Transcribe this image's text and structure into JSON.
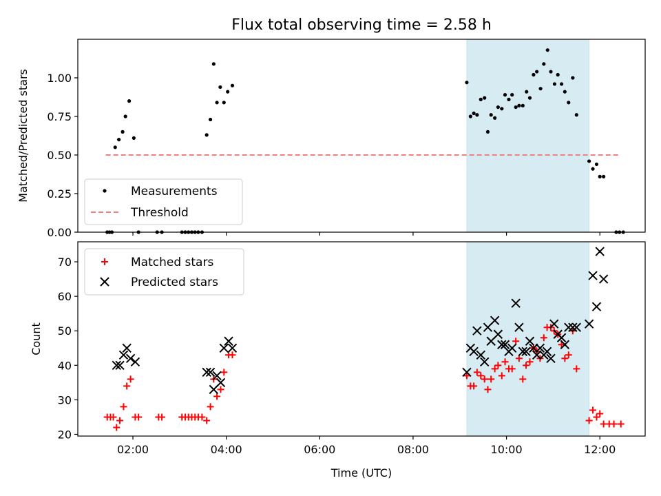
{
  "title": "Flux total observing time = 2.58 h",
  "chart_data": [
    {
      "type": "scatter",
      "ylabel": "Matched/Predicted stars",
      "xlim": [
        0.82,
        12.97
      ],
      "ylim": [
        0,
        1.25
      ],
      "yticks": [
        0.0,
        0.25,
        0.5,
        0.75,
        1.0
      ],
      "ytick_labels": [
        "0.00",
        "0.25",
        "0.50",
        "0.75",
        "1.00"
      ],
      "xtick_labels": [
        "02:00",
        "04:00",
        "06:00",
        "08:00",
        "10:00",
        "12:00"
      ],
      "xticks": [
        2,
        4,
        6,
        8,
        10,
        12
      ],
      "highlight_span": {
        "x": [
          9.15,
          11.77
        ],
        "color": "#add8e6"
      },
      "legend": {
        "placement": "lower-left",
        "entries": [
          "Measurements",
          "Threshold"
        ]
      },
      "series": [
        {
          "name": "Measurements",
          "marker": "dot",
          "color": "#000000",
          "points": [
            [
              1.45,
              0
            ],
            [
              1.5,
              0
            ],
            [
              1.55,
              0
            ],
            [
              1.62,
              0.55
            ],
            [
              1.7,
              0.6
            ],
            [
              1.78,
              0.65
            ],
            [
              1.84,
              0.75
            ],
            [
              1.92,
              0.85
            ],
            [
              2.02,
              0.61
            ],
            [
              2.12,
              0
            ],
            [
              2.52,
              0
            ],
            [
              2.62,
              0
            ],
            [
              3.05,
              0
            ],
            [
              3.12,
              0
            ],
            [
              3.19,
              0
            ],
            [
              3.26,
              0
            ],
            [
              3.33,
              0
            ],
            [
              3.4,
              0
            ],
            [
              3.48,
              0
            ],
            [
              3.58,
              0.63
            ],
            [
              3.66,
              0.73
            ],
            [
              3.73,
              1.09
            ],
            [
              3.8,
              0.84
            ],
            [
              3.87,
              0.94
            ],
            [
              3.95,
              0.84
            ],
            [
              4.03,
              0.91
            ],
            [
              4.13,
              0.95
            ],
            [
              9.15,
              0.97
            ],
            [
              9.23,
              0.75
            ],
            [
              9.3,
              0.77
            ],
            [
              9.37,
              0.76
            ],
            [
              9.45,
              0.86
            ],
            [
              9.53,
              0.87
            ],
            [
              9.6,
              0.65
            ],
            [
              9.67,
              0.76
            ],
            [
              9.75,
              0.74
            ],
            [
              9.82,
              0.81
            ],
            [
              9.9,
              0.8
            ],
            [
              9.97,
              0.89
            ],
            [
              10.05,
              0.86
            ],
            [
              10.12,
              0.89
            ],
            [
              10.2,
              0.81
            ],
            [
              10.27,
              0.82
            ],
            [
              10.35,
              0.82
            ],
            [
              10.43,
              0.91
            ],
            [
              10.5,
              0.87
            ],
            [
              10.58,
              1.02
            ],
            [
              10.65,
              1.04
            ],
            [
              10.73,
              0.93
            ],
            [
              10.8,
              1.09
            ],
            [
              10.88,
              1.18
            ],
            [
              10.95,
              1.04
            ],
            [
              11.03,
              0.96
            ],
            [
              11.1,
              1.02
            ],
            [
              11.18,
              0.96
            ],
            [
              11.25,
              0.91
            ],
            [
              11.33,
              0.84
            ],
            [
              11.42,
              1.0
            ],
            [
              11.5,
              0.76
            ],
            [
              11.77,
              0.46
            ],
            [
              11.85,
              0.41
            ],
            [
              11.93,
              0.44
            ],
            [
              12.0,
              0.36
            ],
            [
              12.08,
              0.36
            ],
            [
              12.35,
              0
            ],
            [
              12.42,
              0
            ],
            [
              12.5,
              0
            ]
          ]
        },
        {
          "name": "Threshold",
          "marker": "dashed-line",
          "color": "#f08080",
          "x": [
            1.42,
            12.45
          ],
          "y": [
            0.5,
            0.5
          ]
        }
      ]
    },
    {
      "type": "scatter",
      "xlabel": "Time (UTC)",
      "ylabel": "Count",
      "xlim": [
        0.82,
        12.97
      ],
      "ylim": [
        19.5,
        75.8
      ],
      "yticks": [
        20,
        30,
        40,
        50,
        60,
        70
      ],
      "ytick_labels": [
        "20",
        "30",
        "40",
        "50",
        "60",
        "70"
      ],
      "xtick_labels": [
        "02:00",
        "04:00",
        "06:00",
        "08:00",
        "10:00",
        "12:00"
      ],
      "xticks": [
        2,
        4,
        6,
        8,
        10,
        12
      ],
      "highlight_span": {
        "x": [
          9.15,
          11.77
        ],
        "color": "#add8e6"
      },
      "legend": {
        "placement": "upper-left",
        "entries": [
          "Matched stars",
          "Predicted stars"
        ]
      },
      "series": [
        {
          "name": "Matched stars",
          "marker": "plus",
          "color": "#ff0000",
          "points": [
            [
              1.45,
              25
            ],
            [
              1.52,
              25
            ],
            [
              1.58,
              25
            ],
            [
              1.65,
              22
            ],
            [
              1.72,
              24
            ],
            [
              1.8,
              28
            ],
            [
              1.87,
              34
            ],
            [
              1.95,
              36
            ],
            [
              2.05,
              25
            ],
            [
              2.12,
              25
            ],
            [
              2.55,
              25
            ],
            [
              2.62,
              25
            ],
            [
              3.05,
              25
            ],
            [
              3.12,
              25
            ],
            [
              3.19,
              25
            ],
            [
              3.26,
              25
            ],
            [
              3.33,
              25
            ],
            [
              3.4,
              25
            ],
            [
              3.48,
              25
            ],
            [
              3.58,
              24
            ],
            [
              3.66,
              28
            ],
            [
              3.73,
              36
            ],
            [
              3.8,
              31
            ],
            [
              3.88,
              33
            ],
            [
              3.95,
              38
            ],
            [
              4.05,
              43
            ],
            [
              4.13,
              43
            ],
            [
              9.15,
              37
            ],
            [
              9.23,
              34
            ],
            [
              9.3,
              34
            ],
            [
              9.37,
              38
            ],
            [
              9.45,
              37
            ],
            [
              9.53,
              36
            ],
            [
              9.6,
              33
            ],
            [
              9.67,
              36
            ],
            [
              9.75,
              39
            ],
            [
              9.82,
              40
            ],
            [
              9.9,
              37
            ],
            [
              9.97,
              41
            ],
            [
              10.05,
              39
            ],
            [
              10.12,
              39
            ],
            [
              10.2,
              47
            ],
            [
              10.27,
              42
            ],
            [
              10.35,
              36
            ],
            [
              10.42,
              40
            ],
            [
              10.5,
              41
            ],
            [
              10.58,
              45
            ],
            [
              10.65,
              44
            ],
            [
              10.72,
              42
            ],
            [
              10.8,
              48
            ],
            [
              10.87,
              51
            ],
            [
              10.95,
              51
            ],
            [
              11.02,
              50
            ],
            [
              11.1,
              49
            ],
            [
              11.18,
              46
            ],
            [
              11.25,
              42
            ],
            [
              11.33,
              43
            ],
            [
              11.42,
              50
            ],
            [
              11.5,
              39
            ],
            [
              11.77,
              24
            ],
            [
              11.85,
              27
            ],
            [
              11.93,
              25
            ],
            [
              12.0,
              26
            ],
            [
              12.08,
              23
            ],
            [
              12.2,
              23
            ],
            [
              12.3,
              23
            ],
            [
              12.45,
              23
            ]
          ]
        },
        {
          "name": "Predicted stars",
          "marker": "x",
          "color": "#000000",
          "points": [
            [
              1.65,
              40
            ],
            [
              1.72,
              40
            ],
            [
              1.8,
              43
            ],
            [
              1.87,
              45
            ],
            [
              1.95,
              42
            ],
            [
              2.05,
              41
            ],
            [
              3.58,
              38
            ],
            [
              3.66,
              38
            ],
            [
              3.73,
              33
            ],
            [
              3.8,
              37
            ],
            [
              3.88,
              35
            ],
            [
              3.95,
              45
            ],
            [
              4.05,
              47
            ],
            [
              4.13,
              45
            ],
            [
              9.15,
              38
            ],
            [
              9.23,
              45
            ],
            [
              9.3,
              44
            ],
            [
              9.37,
              50
            ],
            [
              9.45,
              43
            ],
            [
              9.53,
              41
            ],
            [
              9.6,
              51
            ],
            [
              9.67,
              47
            ],
            [
              9.75,
              53
            ],
            [
              9.82,
              49
            ],
            [
              9.9,
              46
            ],
            [
              9.97,
              46
            ],
            [
              10.05,
              44
            ],
            [
              10.12,
              45
            ],
            [
              10.2,
              58
            ],
            [
              10.27,
              51
            ],
            [
              10.35,
              44
            ],
            [
              10.42,
              44
            ],
            [
              10.5,
              47
            ],
            [
              10.58,
              45
            ],
            [
              10.65,
              43
            ],
            [
              10.72,
              45
            ],
            [
              10.8,
              43
            ],
            [
              10.87,
              44
            ],
            [
              10.95,
              42
            ],
            [
              11.02,
              52
            ],
            [
              11.1,
              49
            ],
            [
              11.18,
              48
            ],
            [
              11.25,
              46
            ],
            [
              11.33,
              51
            ],
            [
              11.42,
              51
            ],
            [
              11.5,
              51
            ],
            [
              11.77,
              52
            ],
            [
              11.85,
              66
            ],
            [
              11.93,
              57
            ],
            [
              12.0,
              73
            ],
            [
              12.08,
              65
            ]
          ]
        }
      ]
    }
  ]
}
